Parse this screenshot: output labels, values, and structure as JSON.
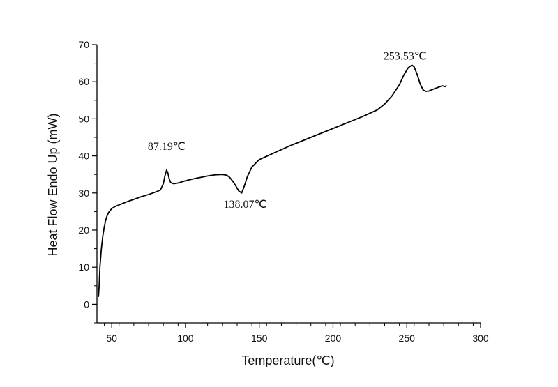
{
  "chart_data": {
    "type": "line",
    "title": "",
    "xlabel": "Temperature(℃)",
    "ylabel": "Heat Flow Endo Up (mW)",
    "xlim": [
      40,
      300
    ],
    "ylim": [
      -5,
      70
    ],
    "x_ticks": [
      50,
      100,
      150,
      200,
      250,
      300
    ],
    "y_ticks": [
      0,
      10,
      20,
      30,
      40,
      50,
      60,
      70
    ],
    "grid": false,
    "legend": "none",
    "line_color": "#000000",
    "series": [
      {
        "x": [
          41,
          41.5,
          42,
          43,
          44,
          45,
          46,
          47,
          48,
          50,
          52,
          55,
          60,
          65,
          70,
          75,
          80,
          83,
          85,
          86,
          87.19,
          88,
          89,
          90,
          92,
          95,
          100,
          105,
          110,
          115,
          120,
          125,
          128,
          130,
          132,
          134,
          136,
          138.07,
          140,
          142,
          145,
          150,
          160,
          170,
          180,
          190,
          200,
          210,
          220,
          230,
          235,
          240,
          245,
          248,
          251,
          253.53,
          255,
          257,
          259,
          261,
          263,
          265,
          268,
          270,
          272,
          274,
          276,
          277
        ],
        "y": [
          2,
          5,
          10,
          15,
          18.5,
          21,
          22.8,
          24,
          24.8,
          25.8,
          26.3,
          26.8,
          27.6,
          28.3,
          29,
          29.6,
          30.3,
          30.8,
          32.5,
          34.5,
          36.2,
          35.5,
          33.8,
          32.8,
          32.5,
          32.7,
          33.3,
          33.8,
          34.2,
          34.6,
          34.9,
          35,
          34.8,
          34.2,
          33.2,
          32,
          30.6,
          30,
          32,
          34.5,
          37,
          39,
          40.8,
          42.6,
          44.2,
          45.8,
          47.4,
          49,
          50.6,
          52.4,
          54,
          56.2,
          59.2,
          61.8,
          63.8,
          64.5,
          64,
          62,
          59.5,
          57.8,
          57.4,
          57.5,
          58,
          58.3,
          58.6,
          58.9,
          58.7,
          59
        ]
      }
    ],
    "annotations": [
      {
        "label": "87.19℃",
        "x": 87.19,
        "y": 36.2
      },
      {
        "label": "138.07℃",
        "x": 138.07,
        "y": 30.0
      },
      {
        "label": "253.53℃",
        "x": 253.53,
        "y": 64.5
      }
    ]
  }
}
